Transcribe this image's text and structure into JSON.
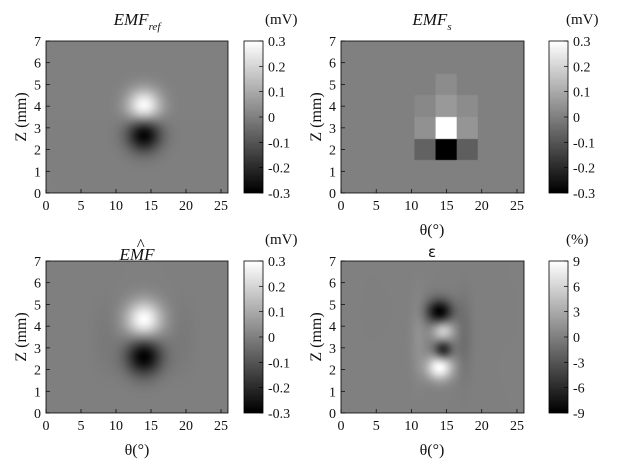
{
  "chart_data": [
    {
      "type": "heatmap",
      "title": "EMF",
      "title_sub": "ref",
      "xlabel": "",
      "ylabel": "Z (mm)",
      "xlim": [
        0,
        26
      ],
      "ylim": [
        0,
        7
      ],
      "xticks": [
        "0",
        "5",
        "10",
        "15",
        "20",
        "25"
      ],
      "yticks": [
        "0",
        "1",
        "2",
        "3",
        "4",
        "5",
        "6",
        "7"
      ],
      "colorbar": {
        "unit": "(mV)",
        "min": -0.3,
        "max": 0.3,
        "ticks": [
          "0.3",
          "0.2",
          "0.1",
          "0",
          "-0.1",
          "-0.2",
          "-0.3"
        ]
      },
      "features": [
        {
          "kind": "gaussian",
          "x": 14,
          "z": 4.0,
          "sx": 1.7,
          "sz": 0.55,
          "amp": 0.3
        },
        {
          "kind": "gaussian",
          "x": 14,
          "z": 2.7,
          "sx": 1.7,
          "sz": 0.55,
          "amp": -0.3
        }
      ]
    },
    {
      "type": "heatmap",
      "title": "EMF",
      "title_sub": "s",
      "xlabel": "θ(°)",
      "ylabel": "Z (mm)",
      "xlim": [
        0,
        26
      ],
      "ylim": [
        0,
        7
      ],
      "xticks": [
        "0",
        "5",
        "10",
        "15",
        "20",
        "25"
      ],
      "yticks": [
        "0",
        "1",
        "2",
        "3",
        "4",
        "5",
        "6",
        "7"
      ],
      "colorbar": {
        "unit": "(mV)",
        "min": -0.3,
        "max": 0.3,
        "ticks": [
          "0.3",
          "0.2",
          "0.1",
          "0",
          "-0.1",
          "-0.2",
          "-0.3"
        ]
      },
      "cells": {
        "x_edges": [
          10.5,
          13.5,
          16.5,
          19.5
        ],
        "z_edges": [
          1.5,
          2.5,
          3.5,
          4.5,
          5.5
        ],
        "values": [
          [
            -0.07,
            -0.3,
            -0.08
          ],
          [
            0.04,
            0.3,
            0.05
          ],
          [
            0.02,
            0.06,
            0.03
          ],
          [
            0.0,
            0.03,
            0.0
          ]
        ]
      }
    },
    {
      "type": "heatmap",
      "title": "EMF",
      "title_hat": true,
      "xlabel": "θ(°)",
      "ylabel": "Z (mm)",
      "xlim": [
        0,
        26
      ],
      "ylim": [
        0,
        7
      ],
      "xticks": [
        "0",
        "5",
        "10",
        "15",
        "20",
        "25"
      ],
      "yticks": [
        "0",
        "1",
        "2",
        "3",
        "4",
        "5",
        "6",
        "7"
      ],
      "colorbar": {
        "unit": "(mV)",
        "min": -0.3,
        "max": 0.3,
        "ticks": [
          "0.3",
          "0.2",
          "0.1",
          "0",
          "-0.1",
          "-0.2",
          "-0.3"
        ]
      },
      "features": [
        {
          "kind": "gaussian",
          "x": 14,
          "z": 4.3,
          "sx": 1.8,
          "sz": 0.6,
          "amp": 0.3
        },
        {
          "kind": "gaussian",
          "x": 14,
          "z": 2.6,
          "sx": 1.8,
          "sz": 0.6,
          "amp": -0.3
        },
        {
          "kind": "gaussian",
          "x": 8.5,
          "z": 3.5,
          "sx": 1.3,
          "sz": 1.2,
          "amp": -0.015
        },
        {
          "kind": "gaussian",
          "x": 19.5,
          "z": 3.5,
          "sx": 1.3,
          "sz": 1.2,
          "amp": -0.015
        }
      ]
    },
    {
      "type": "heatmap",
      "title": "ε",
      "xlabel": "θ(°)",
      "ylabel": "Z (mm)",
      "xlim": [
        0,
        26
      ],
      "ylim": [
        0,
        7
      ],
      "xticks": [
        "0",
        "5",
        "10",
        "15",
        "20",
        "25"
      ],
      "yticks": [
        "0",
        "1",
        "2",
        "3",
        "4",
        "5",
        "6",
        "7"
      ],
      "colorbar": {
        "unit": "(%)",
        "min": -9,
        "max": 9,
        "ticks": [
          "9",
          "6",
          "3",
          "0",
          "-3",
          "-6",
          "-9"
        ]
      },
      "features": [
        {
          "kind": "gaussian",
          "x": 14,
          "z": 4.65,
          "sx": 1.3,
          "sz": 0.4,
          "amp": -9
        },
        {
          "kind": "gaussian",
          "x": 14.5,
          "z": 3.8,
          "sx": 1.1,
          "sz": 0.35,
          "amp": 6
        },
        {
          "kind": "gaussian",
          "x": 14.5,
          "z": 2.9,
          "sx": 0.9,
          "sz": 0.3,
          "amp": -7
        },
        {
          "kind": "gaussian",
          "x": 14,
          "z": 2.1,
          "sx": 1.3,
          "sz": 0.4,
          "amp": 9
        },
        {
          "kind": "gaussian",
          "x": 11,
          "z": 3.5,
          "sx": 0.8,
          "sz": 1.3,
          "amp": 1.2
        },
        {
          "kind": "gaussian",
          "x": 17.5,
          "z": 3.5,
          "sx": 0.8,
          "sz": 1.3,
          "amp": -1.2
        }
      ]
    }
  ]
}
